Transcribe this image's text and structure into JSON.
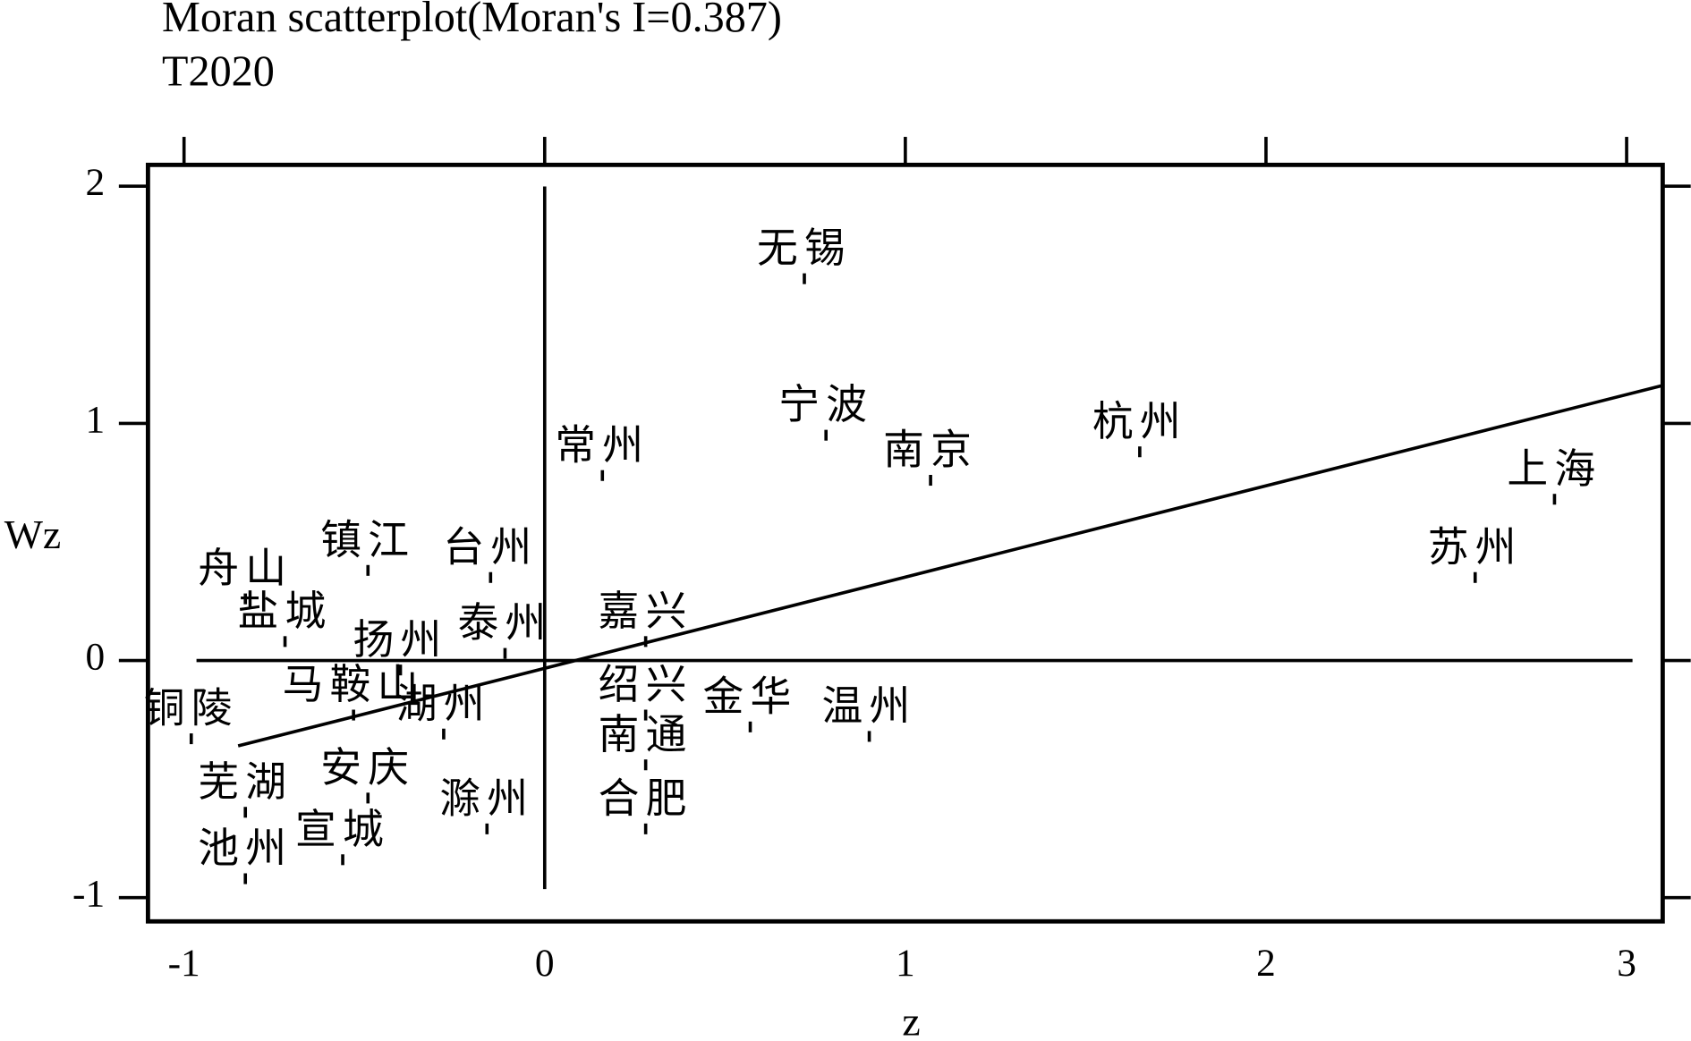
{
  "chart_data": {
    "type": "scatter",
    "title": "Moran scatterplot(Moran's I=0.387)",
    "subtitle": "T2020",
    "x_label": "z",
    "y_label": "Wz",
    "labels": [
      "舟山",
      "盐城",
      "镇江",
      "台州",
      "扬州",
      "泰州",
      "马鞍山",
      "铜陵",
      "湖州",
      "芜湖",
      "安庆",
      "宣城",
      "池州",
      "滁州",
      "嘉兴",
      "绍兴",
      "南通",
      "合肥",
      "金华",
      "温州",
      "无锡",
      "宁波",
      "南京",
      "杭州",
      "常州",
      "上海",
      "苏州"
    ],
    "x": [
      -0.83,
      -0.72,
      -0.49,
      -0.15,
      -0.4,
      -0.11,
      -0.53,
      -0.98,
      -0.28,
      -0.83,
      -0.49,
      -0.56,
      -0.83,
      -0.16,
      0.28,
      0.28,
      0.28,
      0.28,
      0.57,
      0.9,
      0.72,
      0.78,
      1.07,
      1.65,
      0.16,
      2.8,
      2.58
    ],
    "y": [
      0.26,
      0.08,
      0.38,
      0.35,
      -0.04,
      0.03,
      -0.23,
      -0.33,
      -0.31,
      -0.64,
      -0.58,
      -0.84,
      -0.92,
      -0.71,
      0.08,
      -0.23,
      -0.44,
      -0.71,
      -0.28,
      -0.32,
      1.61,
      0.95,
      0.76,
      0.88,
      0.78,
      0.68,
      0.35
    ],
    "color": "#000000",
    "fit_line": {
      "x": [
        -0.85,
        3.1
      ],
      "y": [
        -0.36,
        1.16
      ]
    },
    "xlim": [
      -1.1,
      3.1
    ],
    "ylim": [
      -1.1,
      2.09
    ],
    "xticks": [
      -1,
      0,
      1,
      2,
      3
    ],
    "yticks": [
      -1,
      0,
      1,
      2
    ]
  }
}
